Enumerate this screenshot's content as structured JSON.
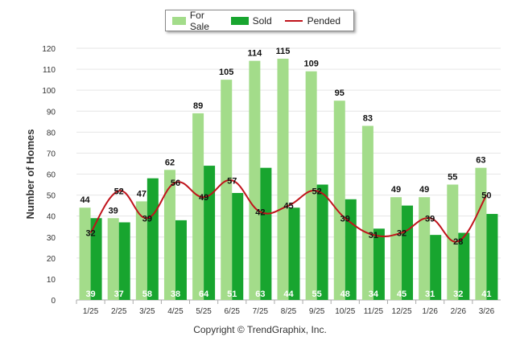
{
  "chart_data": {
    "type": "bar",
    "title": "",
    "xlabel": "",
    "ylabel": "Number of Homes",
    "ylim": [
      0,
      120
    ],
    "yticks": [
      0,
      10,
      20,
      30,
      40,
      50,
      60,
      70,
      80,
      90,
      100,
      110,
      120
    ],
    "categories": [
      "1/25",
      "2/25",
      "3/25",
      "4/25",
      "5/25",
      "6/25",
      "7/25",
      "8/25",
      "9/25",
      "10/25",
      "11/25",
      "12/25",
      "1/26",
      "2/26",
      "3/26"
    ],
    "series": [
      {
        "name": "For Sale",
        "kind": "bar",
        "color": "#a3dc8a",
        "values": [
          44,
          39,
          47,
          62,
          89,
          105,
          114,
          115,
          109,
          95,
          83,
          49,
          49,
          55,
          63
        ]
      },
      {
        "name": "Sold",
        "kind": "bar",
        "color": "#18a52f",
        "values": [
          39,
          37,
          58,
          38,
          64,
          51,
          63,
          44,
          55,
          48,
          34,
          45,
          31,
          32,
          41
        ]
      },
      {
        "name": "Pended",
        "kind": "line",
        "color": "#c0131b",
        "values": [
          32,
          52,
          39,
          56,
          49,
          57,
          42,
          45,
          52,
          39,
          31,
          32,
          39,
          28,
          50
        ]
      }
    ],
    "legend": "top-center"
  },
  "footer": {
    "copyright": "Copyright © TrendGraphix, Inc."
  }
}
